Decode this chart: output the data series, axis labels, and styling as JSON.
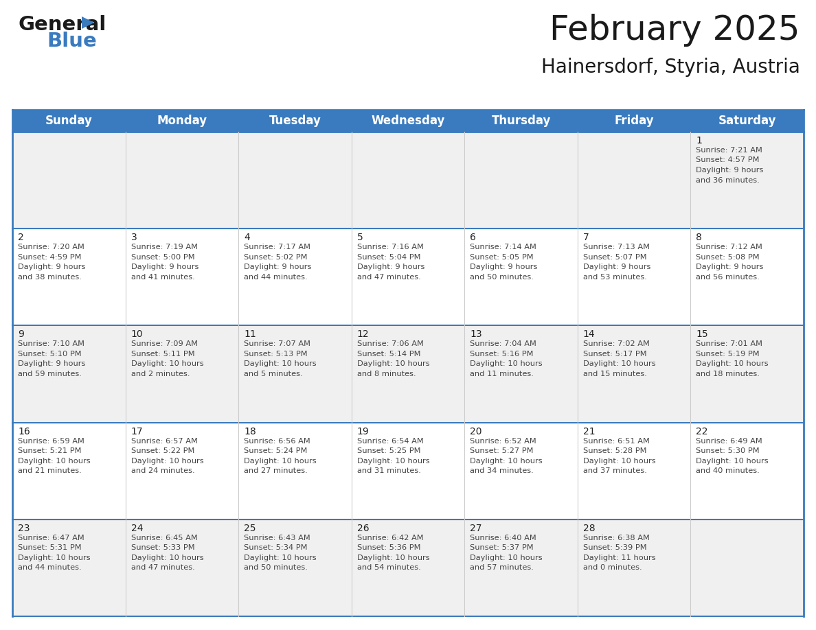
{
  "title": "February 2025",
  "subtitle": "Hainersdorf, Styria, Austria",
  "header_bg_color": "#3a7bbf",
  "header_text_color": "#ffffff",
  "row_bg": [
    "#f0f0f0",
    "#ffffff",
    "#f0f0f0",
    "#ffffff",
    "#f0f0f0"
  ],
  "border_color": "#3a7bbf",
  "cell_divider_color": "#cccccc",
  "day_headers": [
    "Sunday",
    "Monday",
    "Tuesday",
    "Wednesday",
    "Thursday",
    "Friday",
    "Saturday"
  ],
  "days": [
    {
      "day": 1,
      "col": 6,
      "row": 0,
      "sunrise": "7:21 AM",
      "sunset": "4:57 PM",
      "daylight": "9 hours and 36 minutes."
    },
    {
      "day": 2,
      "col": 0,
      "row": 1,
      "sunrise": "7:20 AM",
      "sunset": "4:59 PM",
      "daylight": "9 hours and 38 minutes."
    },
    {
      "day": 3,
      "col": 1,
      "row": 1,
      "sunrise": "7:19 AM",
      "sunset": "5:00 PM",
      "daylight": "9 hours and 41 minutes."
    },
    {
      "day": 4,
      "col": 2,
      "row": 1,
      "sunrise": "7:17 AM",
      "sunset": "5:02 PM",
      "daylight": "9 hours and 44 minutes."
    },
    {
      "day": 5,
      "col": 3,
      "row": 1,
      "sunrise": "7:16 AM",
      "sunset": "5:04 PM",
      "daylight": "9 hours and 47 minutes."
    },
    {
      "day": 6,
      "col": 4,
      "row": 1,
      "sunrise": "7:14 AM",
      "sunset": "5:05 PM",
      "daylight": "9 hours and 50 minutes."
    },
    {
      "day": 7,
      "col": 5,
      "row": 1,
      "sunrise": "7:13 AM",
      "sunset": "5:07 PM",
      "daylight": "9 hours and 53 minutes."
    },
    {
      "day": 8,
      "col": 6,
      "row": 1,
      "sunrise": "7:12 AM",
      "sunset": "5:08 PM",
      "daylight": "9 hours and 56 minutes."
    },
    {
      "day": 9,
      "col": 0,
      "row": 2,
      "sunrise": "7:10 AM",
      "sunset": "5:10 PM",
      "daylight": "9 hours and 59 minutes."
    },
    {
      "day": 10,
      "col": 1,
      "row": 2,
      "sunrise": "7:09 AM",
      "sunset": "5:11 PM",
      "daylight": "10 hours and 2 minutes."
    },
    {
      "day": 11,
      "col": 2,
      "row": 2,
      "sunrise": "7:07 AM",
      "sunset": "5:13 PM",
      "daylight": "10 hours and 5 minutes."
    },
    {
      "day": 12,
      "col": 3,
      "row": 2,
      "sunrise": "7:06 AM",
      "sunset": "5:14 PM",
      "daylight": "10 hours and 8 minutes."
    },
    {
      "day": 13,
      "col": 4,
      "row": 2,
      "sunrise": "7:04 AM",
      "sunset": "5:16 PM",
      "daylight": "10 hours and 11 minutes."
    },
    {
      "day": 14,
      "col": 5,
      "row": 2,
      "sunrise": "7:02 AM",
      "sunset": "5:17 PM",
      "daylight": "10 hours and 15 minutes."
    },
    {
      "day": 15,
      "col": 6,
      "row": 2,
      "sunrise": "7:01 AM",
      "sunset": "5:19 PM",
      "daylight": "10 hours and 18 minutes."
    },
    {
      "day": 16,
      "col": 0,
      "row": 3,
      "sunrise": "6:59 AM",
      "sunset": "5:21 PM",
      "daylight": "10 hours and 21 minutes."
    },
    {
      "day": 17,
      "col": 1,
      "row": 3,
      "sunrise": "6:57 AM",
      "sunset": "5:22 PM",
      "daylight": "10 hours and 24 minutes."
    },
    {
      "day": 18,
      "col": 2,
      "row": 3,
      "sunrise": "6:56 AM",
      "sunset": "5:24 PM",
      "daylight": "10 hours and 27 minutes."
    },
    {
      "day": 19,
      "col": 3,
      "row": 3,
      "sunrise": "6:54 AM",
      "sunset": "5:25 PM",
      "daylight": "10 hours and 31 minutes."
    },
    {
      "day": 20,
      "col": 4,
      "row": 3,
      "sunrise": "6:52 AM",
      "sunset": "5:27 PM",
      "daylight": "10 hours and 34 minutes."
    },
    {
      "day": 21,
      "col": 5,
      "row": 3,
      "sunrise": "6:51 AM",
      "sunset": "5:28 PM",
      "daylight": "10 hours and 37 minutes."
    },
    {
      "day": 22,
      "col": 6,
      "row": 3,
      "sunrise": "6:49 AM",
      "sunset": "5:30 PM",
      "daylight": "10 hours and 40 minutes."
    },
    {
      "day": 23,
      "col": 0,
      "row": 4,
      "sunrise": "6:47 AM",
      "sunset": "5:31 PM",
      "daylight": "10 hours and 44 minutes."
    },
    {
      "day": 24,
      "col": 1,
      "row": 4,
      "sunrise": "6:45 AM",
      "sunset": "5:33 PM",
      "daylight": "10 hours and 47 minutes."
    },
    {
      "day": 25,
      "col": 2,
      "row": 4,
      "sunrise": "6:43 AM",
      "sunset": "5:34 PM",
      "daylight": "10 hours and 50 minutes."
    },
    {
      "day": 26,
      "col": 3,
      "row": 4,
      "sunrise": "6:42 AM",
      "sunset": "5:36 PM",
      "daylight": "10 hours and 54 minutes."
    },
    {
      "day": 27,
      "col": 4,
      "row": 4,
      "sunrise": "6:40 AM",
      "sunset": "5:37 PM",
      "daylight": "10 hours and 57 minutes."
    },
    {
      "day": 28,
      "col": 5,
      "row": 4,
      "sunrise": "6:38 AM",
      "sunset": "5:39 PM",
      "daylight": "11 hours and 0 minutes."
    }
  ],
  "logo_color1": "#1a1a1a",
  "logo_color2": "#3a7bbf",
  "title_fontsize": 36,
  "subtitle_fontsize": 20,
  "header_fontsize": 12,
  "day_num_fontsize": 10,
  "info_fontsize": 8.2
}
